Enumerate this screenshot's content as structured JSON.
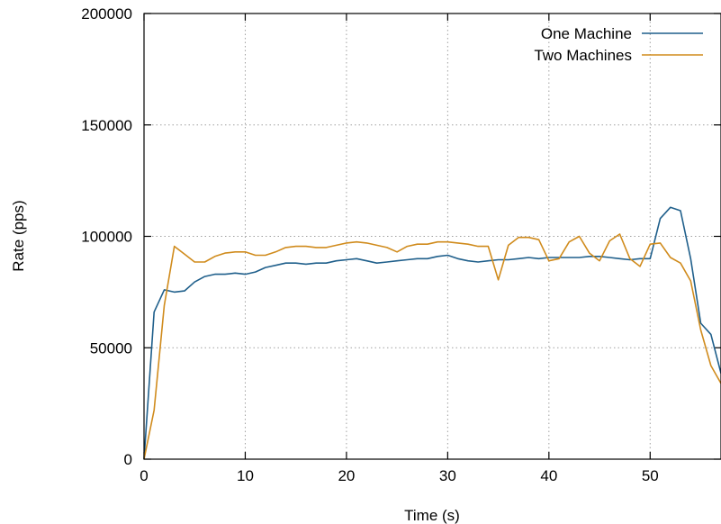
{
  "chart_data": {
    "type": "line",
    "xlabel": "Time (s)",
    "ylabel": "Rate (pps)",
    "xlim": [
      0,
      57
    ],
    "ylim": [
      0,
      200000
    ],
    "x_ticks": [
      0,
      10,
      20,
      30,
      40,
      50
    ],
    "y_ticks": [
      0,
      50000,
      100000,
      150000,
      200000
    ],
    "grid": true,
    "legend_position": "top-right",
    "series": [
      {
        "name": "One Machine",
        "color": "#1f5f8b",
        "x": [
          0,
          1,
          2,
          3,
          4,
          5,
          6,
          7,
          8,
          9,
          10,
          11,
          12,
          13,
          14,
          15,
          16,
          17,
          18,
          19,
          20,
          21,
          22,
          23,
          24,
          25,
          26,
          27,
          28,
          29,
          30,
          31,
          32,
          33,
          34,
          35,
          36,
          37,
          38,
          39,
          40,
          41,
          42,
          43,
          44,
          45,
          46,
          47,
          48,
          49,
          50,
          51,
          52,
          53,
          54,
          55,
          56,
          57
        ],
        "y": [
          0,
          66000,
          76000,
          75000,
          75500,
          79500,
          82000,
          83000,
          83000,
          83500,
          83000,
          84000,
          86000,
          87000,
          88000,
          88000,
          87500,
          88000,
          88000,
          89000,
          89500,
          90000,
          89000,
          88000,
          88500,
          89000,
          89500,
          90000,
          90000,
          91000,
          91500,
          90000,
          89000,
          88500,
          89000,
          89500,
          89500,
          90000,
          90500,
          90000,
          90500,
          90500,
          90500,
          90500,
          91000,
          91000,
          90500,
          90000,
          89500,
          90000,
          90000,
          108000,
          113000,
          111500,
          90000,
          61000,
          56000,
          38500
        ]
      },
      {
        "name": "Two Machines",
        "color": "#d08b1c",
        "x": [
          0,
          1,
          2,
          3,
          4,
          5,
          6,
          7,
          8,
          9,
          10,
          11,
          12,
          13,
          14,
          15,
          16,
          17,
          18,
          19,
          20,
          21,
          22,
          23,
          24,
          25,
          26,
          27,
          28,
          29,
          30,
          31,
          32,
          33,
          34,
          35,
          36,
          37,
          38,
          39,
          40,
          41,
          42,
          43,
          44,
          45,
          46,
          47,
          48,
          49,
          50,
          51,
          52,
          53,
          54,
          55,
          56,
          57
        ],
        "y": [
          0,
          22000,
          69000,
          95500,
          92000,
          88500,
          88500,
          91000,
          92500,
          93000,
          93000,
          91500,
          91500,
          93000,
          95000,
          95500,
          95500,
          95000,
          95000,
          96000,
          97000,
          97500,
          97000,
          96000,
          95000,
          93000,
          95500,
          96500,
          96500,
          97500,
          97500,
          97000,
          96500,
          95500,
          95500,
          80500,
          96000,
          99500,
          99500,
          98500,
          89000,
          90000,
          97500,
          100000,
          92500,
          89000,
          98000,
          101000,
          90000,
          86500,
          96500,
          97000,
          90500,
          88000,
          80000,
          58000,
          42000,
          34000
        ]
      }
    ]
  }
}
